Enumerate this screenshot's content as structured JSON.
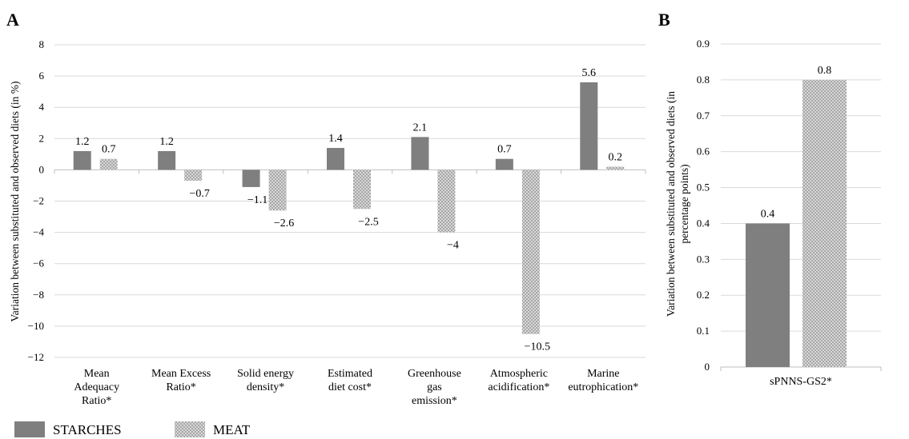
{
  "colors": {
    "starches": "#7f7f7f",
    "meat_pattern": "#bfbfbf",
    "grid": "#d9d9d9",
    "axis": "#bfbfbf"
  },
  "chart_data": [
    {
      "panel_label": "A",
      "type": "bar",
      "ylabel": "Variation between substituted and observed diets (in %)",
      "ylim": [
        -12,
        8
      ],
      "ytick_labels": [
        "8",
        "6",
        "4",
        "2",
        "0",
        "−2",
        "−4",
        "−6",
        "−8",
        "−10",
        "−12"
      ],
      "grid": true,
      "categories": [
        [
          "Mean",
          "Adequacy",
          "Ratio*"
        ],
        [
          "Mean Excess",
          "Ratio*"
        ],
        [
          "Solid energy",
          "density*"
        ],
        [
          "Estimated",
          "diet cost*"
        ],
        [
          "Greenhouse",
          "gas",
          "emission*"
        ],
        [
          "Atmospheric",
          "acidification*"
        ],
        [
          "Marine",
          "eutrophication*"
        ]
      ],
      "series": [
        {
          "name": "STARCHES",
          "values": [
            1.2,
            1.2,
            -1.1,
            1.4,
            2.1,
            0.7,
            5.6
          ],
          "labels": [
            "1.2",
            "1.2",
            "−1.1",
            "1.4",
            "2.1",
            "0.7",
            "5.6"
          ]
        },
        {
          "name": "MEAT",
          "values": [
            0.7,
            -0.7,
            -2.6,
            -2.5,
            -4,
            -10.5,
            0.2
          ],
          "labels": [
            "0.7",
            "−0.7",
            "−2.6",
            "−2.5",
            "−4",
            "−10.5",
            "0.2"
          ]
        }
      ]
    },
    {
      "panel_label": "B",
      "type": "bar",
      "ylabel": "Variation between substituted and observed diets (in percentage points)",
      "ylim": [
        0,
        0.9
      ],
      "ytick_labels": [
        "0.9",
        "0.8",
        "0.7",
        "0.6",
        "0.5",
        "0.4",
        "0.3",
        "0.2",
        "0.1",
        "0"
      ],
      "grid": true,
      "categories": [
        [
          "sPNNS-GS2*"
        ]
      ],
      "series": [
        {
          "name": "STARCHES",
          "values": [
            0.4
          ],
          "labels": [
            "0.4"
          ]
        },
        {
          "name": "MEAT",
          "values": [
            0.8
          ],
          "labels": [
            "0.8"
          ]
        }
      ]
    }
  ],
  "legend": [
    {
      "label": "STARCHES",
      "style": "solid"
    },
    {
      "label": "MEAT",
      "style": "hatched"
    }
  ]
}
